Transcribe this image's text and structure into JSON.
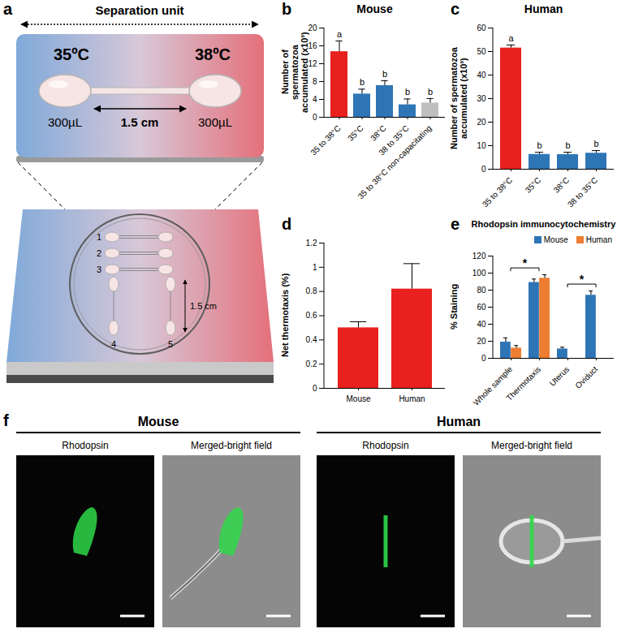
{
  "chart_data": [
    {
      "panel": "b",
      "type": "bar",
      "title": "Mouse",
      "y_label": "Number of spermatozoa accumulated (x10³)",
      "categories": [
        "35 to 38°C",
        "35°C",
        "38°C",
        "38 to 35°C",
        "35 to 38°C non-capacitating"
      ],
      "values": [
        14.7,
        5.2,
        7.1,
        2.8,
        3.2
      ],
      "errors": [
        2.4,
        1.1,
        1.1,
        1.3,
        1.0
      ],
      "colors": [
        "#e8201e",
        "#2e75b6",
        "#2e75b6",
        "#2e75b6",
        "#bfbfbf"
      ],
      "significance_letters": [
        "a",
        "b",
        "b",
        "b",
        "b"
      ],
      "ylim": [
        0,
        20
      ],
      "yticks": [
        0,
        4,
        8,
        12,
        16,
        20
      ]
    },
    {
      "panel": "c",
      "type": "bar",
      "title": "Human",
      "y_label": "Number of spermatozoa accumulated (x10³)",
      "categories": [
        "35 to 38°C",
        "35°C",
        "38°C",
        "38 to 35°C"
      ],
      "values": [
        51.5,
        6.3,
        6.2,
        6.8
      ],
      "errors": [
        1.3,
        0.9,
        1.0,
        1.1
      ],
      "colors": [
        "#e8201e",
        "#2e75b6",
        "#2e75b6",
        "#2e75b6"
      ],
      "significance_letters": [
        "a",
        "b",
        "b",
        "b"
      ],
      "ylim": [
        0,
        60
      ],
      "yticks": [
        0,
        10,
        20,
        30,
        40,
        50,
        60
      ]
    },
    {
      "panel": "d",
      "type": "bar",
      "y_label": "Net thermotaxis (%)",
      "categories": [
        "Mouse",
        "Human"
      ],
      "values": [
        0.5,
        0.82
      ],
      "errors": [
        0.05,
        0.21
      ],
      "color": "#e8201e",
      "ylim": [
        0,
        1.2
      ],
      "yticks": [
        0,
        0.2,
        0.4,
        0.6,
        0.8,
        1,
        1.2
      ]
    },
    {
      "panel": "e",
      "type": "bar",
      "title": "Rhodopsin immunocytochemistry",
      "y_label": "% Staining",
      "categories": [
        "Whole sample",
        "Thermotaxis",
        "Uterus",
        "Oviduct"
      ],
      "series": [
        {
          "name": "Mouse",
          "color": "#2e75b6",
          "values": [
            19,
            89,
            11,
            74
          ],
          "errors": [
            5,
            4,
            2,
            5
          ]
        },
        {
          "name": "Human",
          "color": "#ed7d31",
          "values": [
            12,
            94,
            null,
            null
          ],
          "errors": [
            3,
            4,
            null,
            null
          ]
        }
      ],
      "legend": "top-right",
      "significance": [
        {
          "between": [
            "Whole sample",
            "Thermotaxis"
          ],
          "label": "*"
        },
        {
          "between": [
            "Uterus",
            "Oviduct"
          ],
          "label": "*"
        }
      ],
      "ylim": [
        0,
        120
      ],
      "yticks": [
        0,
        20,
        40,
        60,
        80,
        100,
        120
      ]
    }
  ],
  "diagram": {
    "panel": "a",
    "title": "Separation unit",
    "temperatures": [
      "35ºC",
      "38ºC"
    ],
    "volumes": [
      "300µL",
      "300µL"
    ],
    "distance": "1.5 cm",
    "unit_labels": [
      "1",
      "2",
      "3",
      "4",
      "5"
    ],
    "unit_distance": "1.5 cm"
  },
  "images": {
    "panel": "f",
    "groups": [
      {
        "title": "Mouse",
        "panels": [
          "Rhodopsin",
          "Merged-bright field"
        ]
      },
      {
        "title": "Human",
        "panels": [
          "Rhodopsin",
          "Merged-bright field"
        ]
      }
    ]
  }
}
